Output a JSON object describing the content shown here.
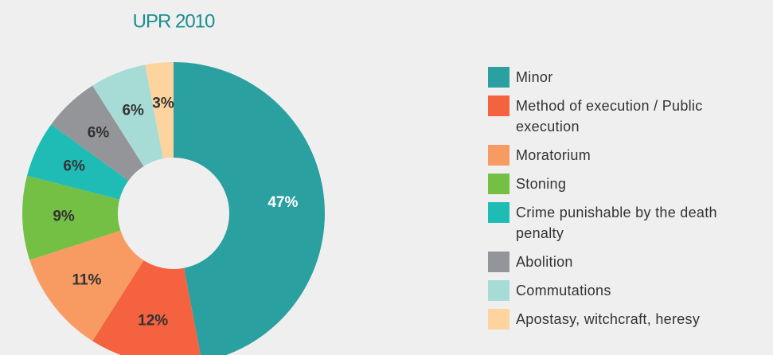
{
  "chart_data": {
    "type": "donut",
    "title": "UPR 2010",
    "categories": [
      "Minor",
      "Method of execution / Public execution",
      "Moratorium",
      "Stoning",
      "Crime punishable by the death penalty",
      "Abolition",
      "Commutations",
      "Apostasy, witchcraft, heresy"
    ],
    "values": [
      47,
      12,
      11,
      9,
      6,
      6,
      6,
      3
    ],
    "value_labels": [
      "47%",
      "12%",
      "11%",
      "9%",
      "6%",
      "6%",
      "6%",
      "3%"
    ],
    "colors": [
      "#2ba0a0",
      "#f4623f",
      "#f89b63",
      "#74c044",
      "#1fbcb6",
      "#939598",
      "#a7dcd6",
      "#fdd49e"
    ]
  }
}
